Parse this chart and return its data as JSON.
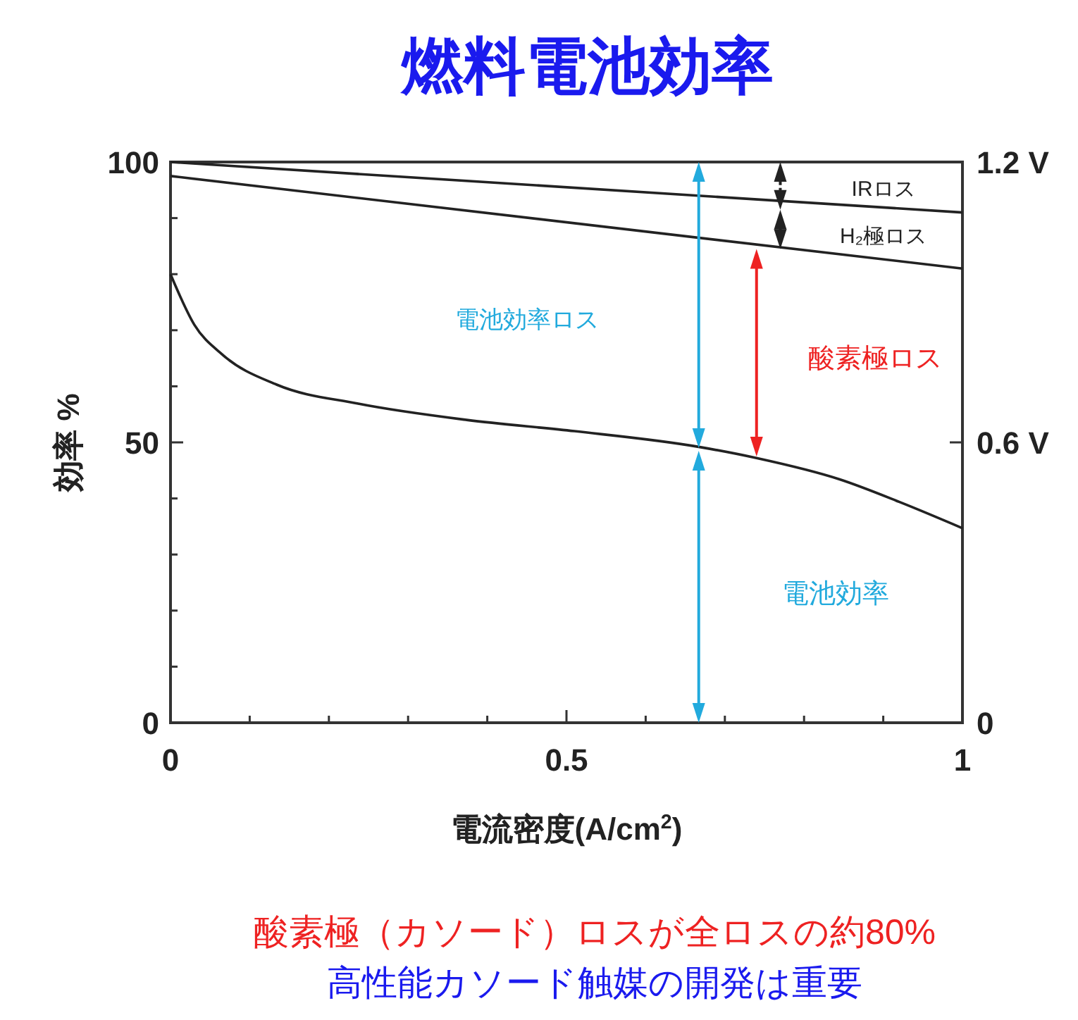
{
  "chart_data": {
    "type": "line",
    "title": "燃料電池効率",
    "xlabel": "電流密度(A/cm$^{2}$)",
    "ylabel": "効率 %",
    "xlim": [
      0,
      1
    ],
    "xticks": [
      0,
      {
        "value": 0.1,
        "label": null
      },
      {
        "value": 0.2,
        "label": null
      },
      {
        "value": 0.3,
        "label": null
      },
      {
        "value": 0.4,
        "label": null
      },
      0.5,
      {
        "value": 0.6,
        "label": null
      },
      {
        "value": 0.7,
        "label": null
      },
      {
        "value": 0.8,
        "label": null
      },
      {
        "value": 0.9,
        "label": null
      },
      1
    ],
    "ylim": [
      0,
      100
    ],
    "yticks": [
      0,
      {
        "value": 10,
        "label": null
      },
      {
        "value": 20,
        "label": null
      },
      {
        "value": 30,
        "label": null
      },
      {
        "value": 40,
        "label": null
      },
      50,
      {
        "value": 60,
        "label": null
      },
      {
        "value": 70,
        "label": null
      },
      {
        "value": 80,
        "label": null
      },
      {
        "value": 90,
        "label": null
      },
      100
    ],
    "y2lim": [
      0,
      1.2
    ],
    "y2ticks": [
      0,
      {
        "value": 0.6,
        "label": "0.6 V"
      },
      {
        "value": 1.2,
        "label": "1.2 V"
      }
    ],
    "marker": "none",
    "line_style": "solid",
    "grid": false,
    "series": [
      {
        "color": "#222222",
        "x": [
          0,
          1
        ],
        "values": [
          100,
          91
        ]
      },
      {
        "color": "#222222",
        "x": [
          0,
          1
        ],
        "values": [
          97.5,
          81
        ]
      },
      {
        "color": "#222222",
        "x": [
          0,
          0.03,
          0.066,
          0.134,
          0.237,
          0.374,
          0.51,
          0.667,
          0.74,
          0.845,
          0.92,
          1
        ],
        "values": [
          80,
          71,
          65.6,
          60.3,
          56.9,
          54,
          52,
          49.2,
          47.2,
          43.4,
          39.4,
          34.7
        ]
      }
    ],
    "annotations": [
      "IRロス",
      "H₂極ロス",
      "電池効率ロス",
      "酸素極ロス",
      "電池効率",
      "酸素極（カソード）ロスが全ロスの約80%",
      "高性能カソード触媒の開発は重要"
    ]
  }
}
